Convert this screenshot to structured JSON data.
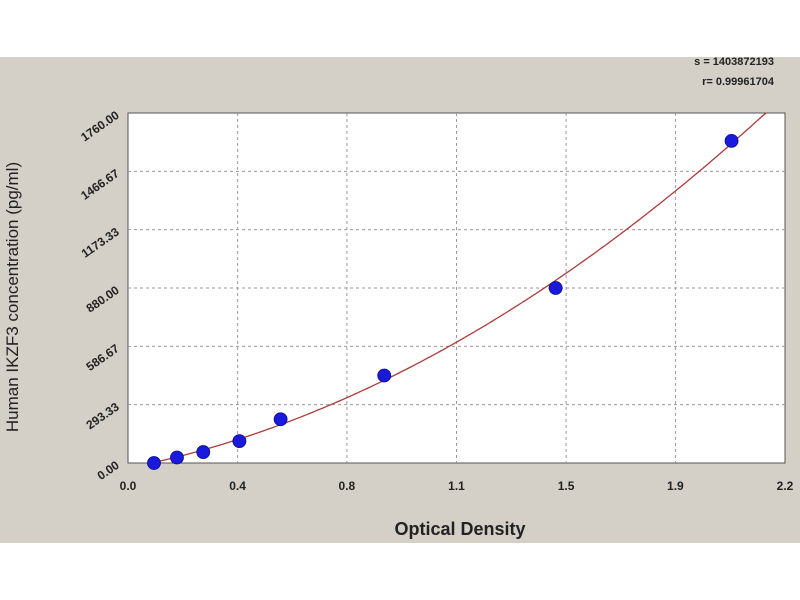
{
  "chart_data": {
    "type": "scatter",
    "xlabel": "Optical Density",
    "ylabel": "Human IKZF3 concentration (pg/ml)",
    "xlim": [
      0.0,
      2.2
    ],
    "ylim": [
      0.0,
      1760.0
    ],
    "x_ticks": [
      "0.0",
      "0.4",
      "0.8",
      "1.1",
      "1.5",
      "1.9",
      "2.2"
    ],
    "x_tick_values": [
      0.0,
      0.367,
      0.733,
      1.1,
      1.467,
      1.833,
      2.2
    ],
    "y_ticks": [
      "0.00",
      "293.33",
      "586.67",
      "880.00",
      "1173.33",
      "1466.67",
      "1760.00"
    ],
    "y_tick_values": [
      0.0,
      293.33,
      586.67,
      880.0,
      1173.33,
      1466.67,
      1760.0
    ],
    "grid": true,
    "points": {
      "x": [
        0.087,
        0.164,
        0.252,
        0.373,
        0.511,
        0.858,
        1.432,
        2.021
      ],
      "y": [
        0.0,
        27.5,
        55.0,
        110.0,
        220.0,
        440.0,
        880.0,
        1620.0
      ]
    },
    "fit_curve_color": "#b03a3a",
    "marker_color": "#1a1adc",
    "plot_background": "#ffffff",
    "panel_background": "#d4d0c8",
    "stats": {
      "s": "s = 1403872193",
      "r": "r= 0.99961704"
    }
  }
}
